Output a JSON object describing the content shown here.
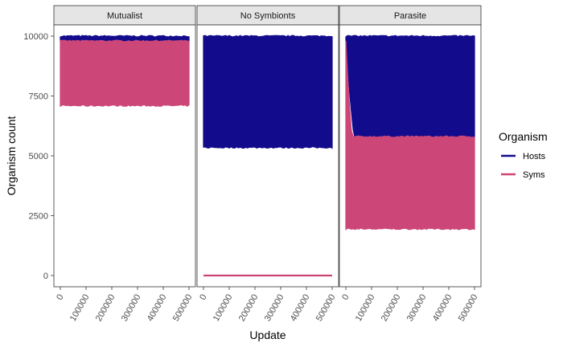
{
  "chart_data": {
    "type": "line",
    "facets": [
      "Mutualist",
      "No Symbionts",
      "Parasite"
    ],
    "xlabel": "Update",
    "ylabel": "Organism count",
    "xlim": [
      0,
      500000
    ],
    "ylim": [
      0,
      10000
    ],
    "x_ticks": [
      "0",
      "100000",
      "200000",
      "300000",
      "400000",
      "500000"
    ],
    "y_ticks": [
      "0",
      "2500",
      "5000",
      "7500",
      "10000"
    ],
    "legend": {
      "title": "Organism",
      "position": "right",
      "entries": [
        {
          "label": "Hosts",
          "color": "#120b8c"
        },
        {
          "label": "Syms",
          "color": "#cc4778"
        }
      ]
    },
    "panels": [
      {
        "facet": "Mutualist",
        "series": [
          {
            "name": "Hosts",
            "x_range": [
              0,
              500000
            ],
            "y_min": 9750,
            "y_max": 10000
          },
          {
            "name": "Syms",
            "x_range": [
              0,
              500000
            ],
            "y_min": 7100,
            "y_max": 9800
          }
        ]
      },
      {
        "facet": "No Symbionts",
        "series": [
          {
            "name": "Hosts",
            "x_range": [
              0,
              500000
            ],
            "y_min": 5350,
            "y_max": 10000
          },
          {
            "name": "Syms",
            "x_range": [
              0,
              500000
            ],
            "y_min": 0,
            "y_max": 0
          }
        ]
      },
      {
        "facet": "Parasite",
        "series": [
          {
            "name": "Hosts",
            "x_range": [
              0,
              500000
            ],
            "y_min": 5750,
            "y_max": 10000,
            "initial_y_min": 9800
          },
          {
            "name": "Syms",
            "x_range": [
              0,
              500000
            ],
            "y_min": 1950,
            "y_max": 5800,
            "initial_y_max": 9800
          }
        ]
      }
    ]
  }
}
